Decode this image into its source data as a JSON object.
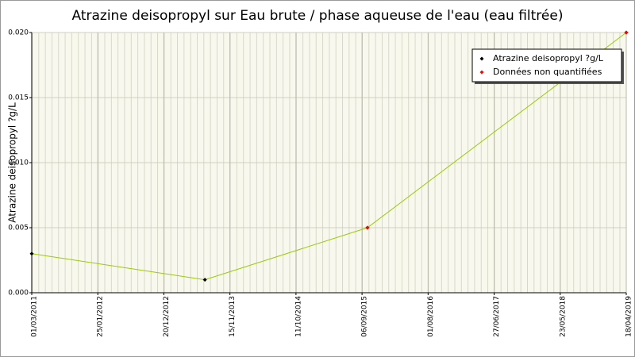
{
  "chart_data": {
    "type": "line",
    "title": "Atrazine deisopropyl sur Eau brute / phase aqueuse de l'eau (eau filtrée)",
    "y_label": "Atrazine deisopropyl ?g/L",
    "xlim": [
      "2011-03-01",
      "2019-04-18"
    ],
    "xticks": [
      {
        "value": "2011-03-01",
        "label": "01/03/2011"
      },
      {
        "value": "2012-01-25",
        "label": "25/01/2012"
      },
      {
        "value": "2012-12-20",
        "label": "20/12/2012"
      },
      {
        "value": "2013-11-15",
        "label": "15/11/2013"
      },
      {
        "value": "2014-10-11",
        "label": "11/10/2014"
      },
      {
        "value": "2015-09-06",
        "label": "06/09/2015"
      },
      {
        "value": "2016-08-01",
        "label": "01/08/2016"
      },
      {
        "value": "2017-06-27",
        "label": "27/06/2017"
      },
      {
        "value": "2018-05-23",
        "label": "23/05/2018"
      },
      {
        "value": "2019-04-18",
        "label": "18/04/2019"
      }
    ],
    "ylim": [
      0,
      0.02
    ],
    "yticks": [
      {
        "value": 0,
        "label": "0.000"
      },
      {
        "value": 0.005,
        "label": "0.005"
      },
      {
        "value": 0.01,
        "label": "0.010"
      },
      {
        "value": 0.015,
        "label": "0.015"
      },
      {
        "value": 0.02,
        "label": "0.020"
      }
    ],
    "grid": true,
    "legend": "upper right",
    "series": [
      {
        "name": "Atrazine deisopropyl ?g/L",
        "color": "#000000",
        "line_color": "#99cc00",
        "x": [
          "2011-03-01",
          "2013-07-13",
          "2015-10-03",
          "2019-04-18"
        ],
        "values": [
          0.003,
          0.001,
          0.005,
          0.02
        ]
      },
      {
        "name": "Données non quantifiées",
        "color": "#ff0000",
        "x": [
          "2015-10-03",
          "2019-04-18"
        ],
        "values": [
          0.005,
          0.02
        ]
      }
    ]
  }
}
